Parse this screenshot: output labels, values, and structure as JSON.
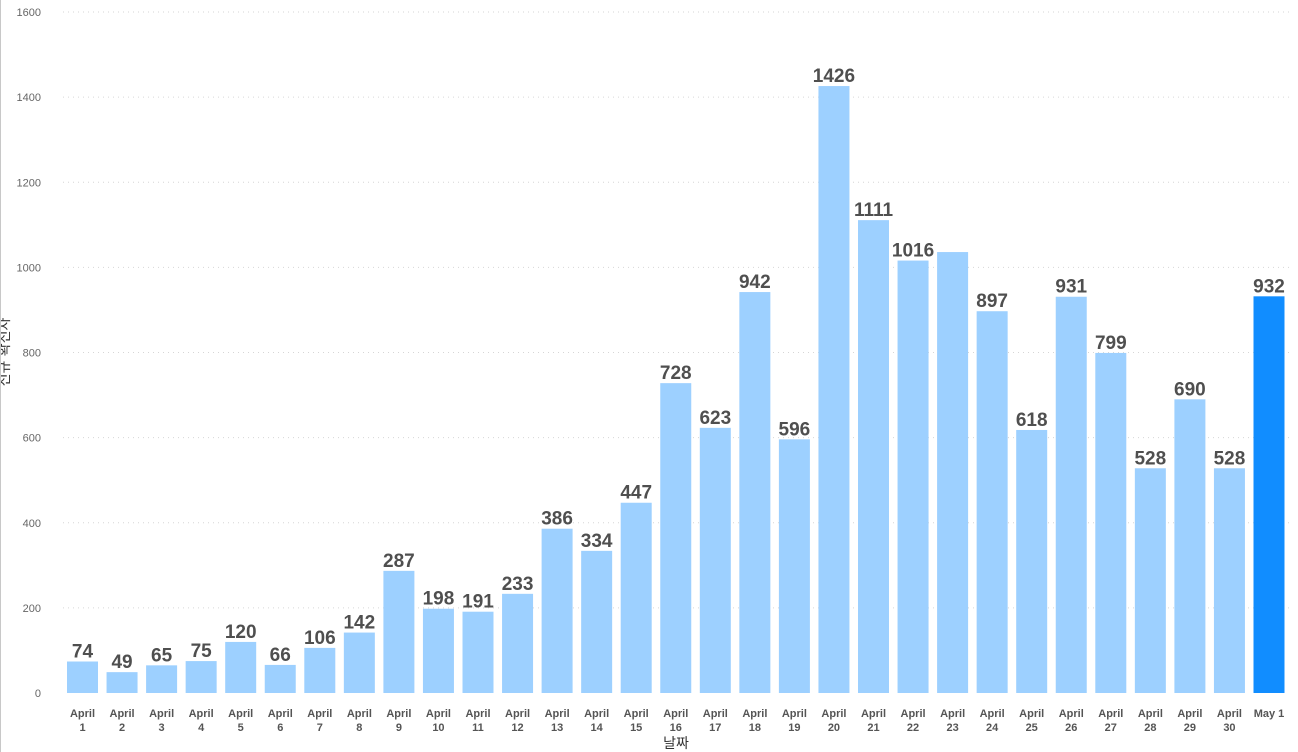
{
  "chart_data": {
    "type": "bar",
    "xlabel": "날짜",
    "ylabel": "신규 확진자",
    "ylim": [
      0,
      1600
    ],
    "yticks": [
      0,
      200,
      400,
      600,
      800,
      1000,
      1200,
      1400,
      1600
    ],
    "grid": true,
    "categories": [
      [
        "April",
        "1"
      ],
      [
        "April",
        "2"
      ],
      [
        "April",
        "3"
      ],
      [
        "April",
        "4"
      ],
      [
        "April",
        "5"
      ],
      [
        "April",
        "6"
      ],
      [
        "April",
        "7"
      ],
      [
        "April",
        "8"
      ],
      [
        "April",
        "9"
      ],
      [
        "April",
        "10"
      ],
      [
        "April",
        "11"
      ],
      [
        "April",
        "12"
      ],
      [
        "April",
        "13"
      ],
      [
        "April",
        "14"
      ],
      [
        "April",
        "15"
      ],
      [
        "April",
        "16"
      ],
      [
        "April",
        "17"
      ],
      [
        "April",
        "18"
      ],
      [
        "April",
        "19"
      ],
      [
        "April",
        "20"
      ],
      [
        "April",
        "21"
      ],
      [
        "April",
        "22"
      ],
      [
        "April",
        "23"
      ],
      [
        "April",
        "24"
      ],
      [
        "April",
        "25"
      ],
      [
        "April",
        "26"
      ],
      [
        "April",
        "27"
      ],
      [
        "April",
        "28"
      ],
      [
        "April",
        "29"
      ],
      [
        "April",
        "30"
      ],
      [
        "May 1"
      ]
    ],
    "values": [
      74,
      49,
      65,
      75,
      120,
      66,
      106,
      142,
      287,
      198,
      191,
      233,
      386,
      334,
      447,
      728,
      623,
      942,
      596,
      1426,
      1111,
      1016,
      1036,
      897,
      618,
      931,
      799,
      528,
      690,
      528,
      932
    ],
    "data_labels": [
      "74",
      "49",
      "65",
      "75",
      "120",
      "66",
      "106",
      "142",
      "287",
      "198",
      "191",
      "233",
      "386",
      "334",
      "447",
      "728",
      "623",
      "942",
      "596",
      "1426",
      "1111",
      "1016",
      "",
      "897",
      "618",
      "931",
      "799",
      "528",
      "690",
      "528",
      "932"
    ],
    "highlight_index": 30,
    "colors": {
      "bar": "#9dd0ff",
      "highlight": "#118dff",
      "label": "#4f4f4f"
    }
  }
}
